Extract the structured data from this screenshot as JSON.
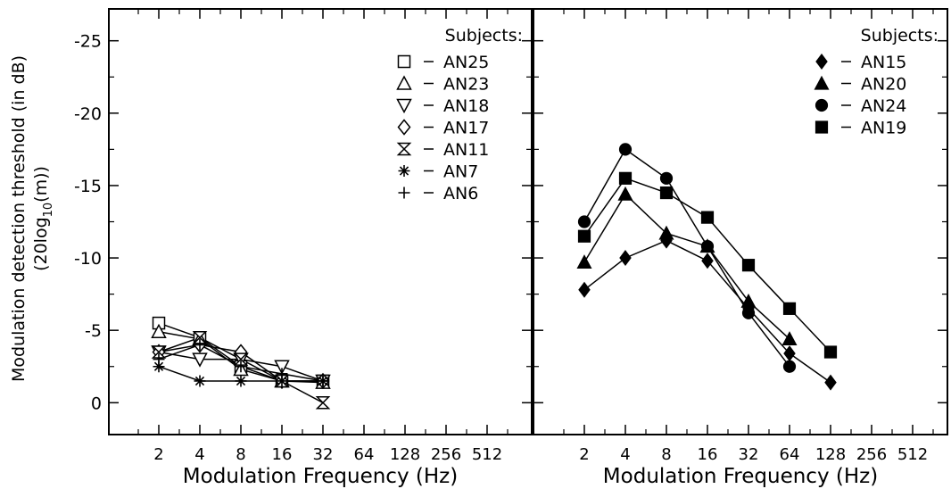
{
  "y_label_line1": "Modulation detection threshold (in dB)",
  "y_label_line2": {
    "pre": "(20log",
    "sub": "10",
    "post": "(m))"
  },
  "chart_data": [
    {
      "type": "line",
      "panel": "left",
      "xlabel": "Modulation Frequency (Hz)",
      "x_scale": "log2",
      "x_ticks": [
        "2",
        "4",
        "8",
        "16",
        "32",
        "64",
        "128",
        "256",
        "512"
      ],
      "x_tick_values": [
        2,
        4,
        8,
        16,
        32,
        64,
        128,
        256,
        512
      ],
      "y_ticks": [
        "-25",
        "-20",
        "-15",
        "-10",
        "-5",
        "0"
      ],
      "y_tick_values": [
        -25,
        -20,
        -15,
        -10,
        -5,
        0
      ],
      "ylim": [
        2.2,
        -27.2
      ],
      "y_inverted": true,
      "legend_title": "Subjects:",
      "legend_position": "top-right",
      "series": [
        {
          "name": "AN25",
          "marker": "open-square",
          "x": [
            2,
            4,
            8,
            16,
            32
          ],
          "y": [
            -5.5,
            -4.5,
            -2.5,
            -1.5,
            -1.5
          ]
        },
        {
          "name": "AN23",
          "marker": "open-triangle-up",
          "x": [
            2,
            4,
            8,
            16,
            32
          ],
          "y": [
            -4.9,
            -4.4,
            -2.3,
            -1.5,
            -1.4
          ]
        },
        {
          "name": "AN18",
          "marker": "open-triangle-down",
          "x": [
            2,
            4,
            8,
            16,
            32
          ],
          "y": [
            -3.5,
            -3.0,
            -3.0,
            -2.5,
            -1.5
          ]
        },
        {
          "name": "AN17",
          "marker": "open-diamond",
          "x": [
            2,
            4,
            8,
            16,
            32
          ],
          "y": [
            -3.5,
            -4.0,
            -3.5,
            -1.5,
            -1.5
          ]
        },
        {
          "name": "AN11",
          "marker": "hourglass",
          "x": [
            2,
            4,
            8,
            16,
            32
          ],
          "y": [
            -3.5,
            -4.5,
            -3.0,
            -1.5,
            0.0
          ]
        },
        {
          "name": "AN7",
          "marker": "asterisk",
          "x": [
            2,
            4,
            8,
            16,
            32
          ],
          "y": [
            -2.5,
            -1.5,
            -1.5,
            -1.5,
            -1.5
          ]
        },
        {
          "name": "AN6",
          "marker": "plus",
          "x": [
            2,
            4,
            8,
            16,
            32
          ],
          "y": [
            -3.0,
            -4.0,
            -2.5,
            -2.0,
            -1.5
          ]
        }
      ]
    },
    {
      "type": "line",
      "panel": "right",
      "xlabel": "Modulation Frequency (Hz)",
      "x_scale": "log2",
      "x_ticks": [
        "2",
        "4",
        "8",
        "16",
        "32",
        "64",
        "128",
        "256",
        "512"
      ],
      "x_tick_values": [
        2,
        4,
        8,
        16,
        32,
        64,
        128,
        256,
        512
      ],
      "y_tick_values": [
        -25,
        -20,
        -15,
        -10,
        -5,
        0
      ],
      "ylim": [
        2.2,
        -27.2
      ],
      "y_inverted": true,
      "legend_title": "Subjects:",
      "legend_position": "top-right",
      "series": [
        {
          "name": "AN15",
          "marker": "filled-diamond",
          "x": [
            2,
            4,
            8,
            16,
            32,
            64,
            128
          ],
          "y": [
            -7.8,
            -10.0,
            -11.2,
            -9.8,
            -6.5,
            -3.4,
            -1.4
          ]
        },
        {
          "name": "AN20",
          "marker": "filled-triangle-up",
          "x": [
            2,
            4,
            8,
            16,
            32,
            64
          ],
          "y": [
            -9.7,
            -14.4,
            -11.7,
            -10.8,
            -7.0,
            -4.4
          ]
        },
        {
          "name": "AN24",
          "marker": "filled-circle",
          "x": [
            2,
            4,
            8,
            16,
            32,
            64
          ],
          "y": [
            -12.5,
            -17.5,
            -15.5,
            -10.8,
            -6.2,
            -2.5
          ]
        },
        {
          "name": "AN19",
          "marker": "filled-square",
          "x": [
            2,
            4,
            8,
            16,
            32,
            64,
            128
          ],
          "y": [
            -11.5,
            -15.5,
            -14.5,
            -12.8,
            -9.5,
            -6.5,
            -3.5
          ]
        }
      ]
    }
  ]
}
